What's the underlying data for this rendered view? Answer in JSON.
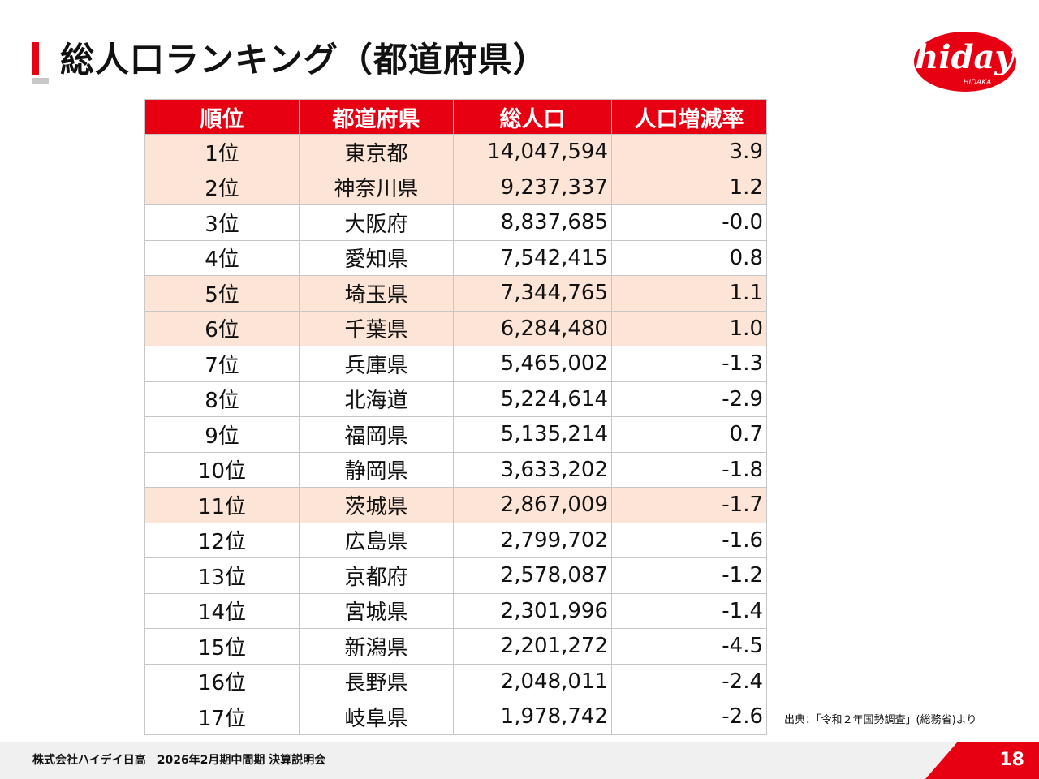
{
  "title": "総人口ランキング（都道府県）",
  "logo": {
    "word": "hiday",
    "sub": "HIDAKA"
  },
  "table": {
    "headers": [
      "順位",
      "都道府県",
      "総人口",
      "人口増減率"
    ],
    "rows": [
      {
        "rank": "1位",
        "pref": "東京都",
        "pop": "14,047,594",
        "rate": "3.9",
        "highlight": true
      },
      {
        "rank": "2位",
        "pref": "神奈川県",
        "pop": "9,237,337",
        "rate": "1.2",
        "highlight": true
      },
      {
        "rank": "3位",
        "pref": "大阪府",
        "pop": "8,837,685",
        "rate": "-0.0",
        "highlight": false
      },
      {
        "rank": "4位",
        "pref": "愛知県",
        "pop": "7,542,415",
        "rate": "0.8",
        "highlight": false
      },
      {
        "rank": "5位",
        "pref": "埼玉県",
        "pop": "7,344,765",
        "rate": "1.1",
        "highlight": true
      },
      {
        "rank": "6位",
        "pref": "千葉県",
        "pop": "6,284,480",
        "rate": "1.0",
        "highlight": true
      },
      {
        "rank": "7位",
        "pref": "兵庫県",
        "pop": "5,465,002",
        "rate": "-1.3",
        "highlight": false
      },
      {
        "rank": "8位",
        "pref": "北海道",
        "pop": "5,224,614",
        "rate": "-2.9",
        "highlight": false
      },
      {
        "rank": "9位",
        "pref": "福岡県",
        "pop": "5,135,214",
        "rate": "0.7",
        "highlight": false
      },
      {
        "rank": "10位",
        "pref": "静岡県",
        "pop": "3,633,202",
        "rate": "-1.8",
        "highlight": false
      },
      {
        "rank": "11位",
        "pref": "茨城県",
        "pop": "2,867,009",
        "rate": "-1.7",
        "highlight": true
      },
      {
        "rank": "12位",
        "pref": "広島県",
        "pop": "2,799,702",
        "rate": "-1.6",
        "highlight": false
      },
      {
        "rank": "13位",
        "pref": "京都府",
        "pop": "2,578,087",
        "rate": "-1.2",
        "highlight": false
      },
      {
        "rank": "14位",
        "pref": "宮城県",
        "pop": "2,301,996",
        "rate": "-1.4",
        "highlight": false
      },
      {
        "rank": "15位",
        "pref": "新潟県",
        "pop": "2,201,272",
        "rate": "-4.5",
        "highlight": false
      },
      {
        "rank": "16位",
        "pref": "長野県",
        "pop": "2,048,011",
        "rate": "-2.4",
        "highlight": false
      },
      {
        "rank": "17位",
        "pref": "岐阜県",
        "pop": "1,978,742",
        "rate": "-2.6",
        "highlight": false
      }
    ]
  },
  "source": "出典：「令和２年国勢調査」(総務省)より",
  "footer": {
    "company": "株式会社ハイデイ日高　2026年2月期中間期  決算説明会",
    "page": "18"
  },
  "colors": {
    "accent": "#e60012",
    "highlight": "#fce4d6",
    "footer_bg": "#f0f0f0"
  }
}
